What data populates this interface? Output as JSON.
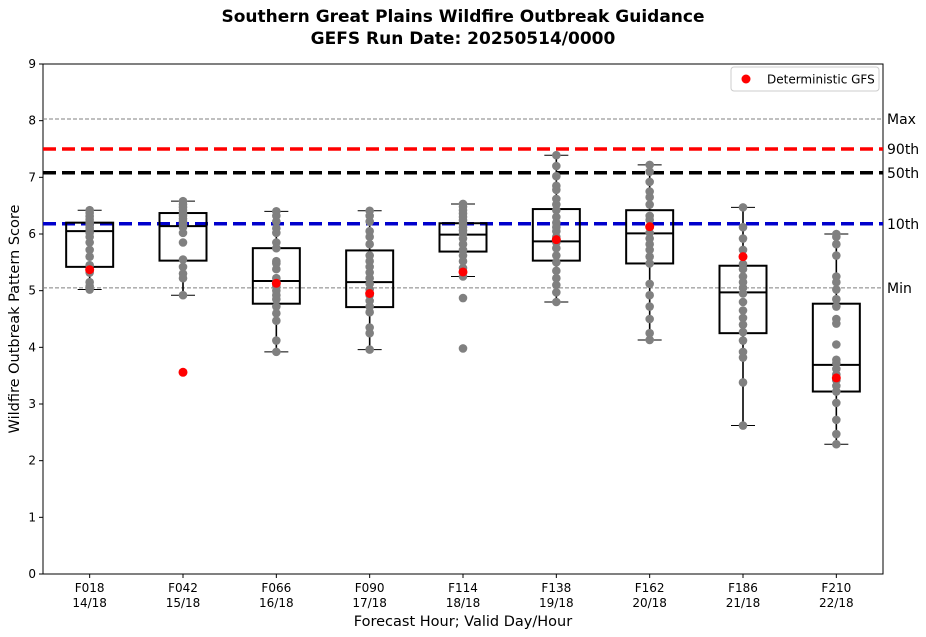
{
  "chart_data": {
    "type": "box",
    "title": "Southern Great Plains Wildfire Outbreak Guidance",
    "subtitle": "GEFS Run Date: 20250514/0000",
    "xlabel": "Forecast Hour; Valid Day/Hour",
    "ylabel": "Wildfire Outbreak Pattern Score",
    "ylim": [
      0,
      9
    ],
    "yticks": [
      0,
      1,
      2,
      3,
      4,
      5,
      6,
      7,
      8,
      9
    ],
    "grid": false,
    "legend": {
      "placement": "top-right",
      "entries": [
        "Deterministic GFS"
      ]
    },
    "colors": {
      "ensemble_points": "#808080",
      "deterministic": "#ff0000",
      "p90": "#ff0000",
      "p50": "#000000",
      "p10": "#0000cc",
      "minmax": "#808080"
    },
    "reference_lines": [
      {
        "label": "Max",
        "value": 8.03,
        "style": "thin-dashed"
      },
      {
        "label": "90th",
        "value": 7.5,
        "style": "thick-dashed"
      },
      {
        "label": "50th",
        "value": 7.08,
        "style": "thick-dashed"
      },
      {
        "label": "10th",
        "value": 6.18,
        "style": "thick-dashed"
      },
      {
        "label": "Min",
        "value": 5.05,
        "style": "thin-dashed"
      }
    ],
    "categories": [
      {
        "hour": "F018",
        "valid": "14/18",
        "box": {
          "whislo": 5.02,
          "q1": 5.42,
          "med": 6.05,
          "q3": 6.2,
          "whishi": 6.42
        },
        "deterministic": 5.37,
        "members": [
          5.02,
          5.08,
          5.15,
          5.32,
          5.45,
          5.6,
          5.72,
          5.85,
          5.95,
          6.02,
          6.08,
          6.12,
          6.17,
          6.21,
          6.26,
          6.31,
          6.37,
          6.42
        ]
      },
      {
        "hour": "F042",
        "valid": "15/18",
        "box": {
          "whislo": 4.92,
          "q1": 5.53,
          "med": 6.14,
          "q3": 6.37,
          "whishi": 6.58
        },
        "deterministic": 3.56,
        "members": [
          4.92,
          5.22,
          5.3,
          5.42,
          5.55,
          5.85,
          6.02,
          6.12,
          6.17,
          6.22,
          6.27,
          6.32,
          6.36,
          6.42,
          6.47,
          6.52,
          6.58
        ]
      },
      {
        "hour": "F066",
        "valid": "16/18",
        "box": {
          "whislo": 3.92,
          "q1": 4.77,
          "med": 5.17,
          "q3": 5.75,
          "whishi": 6.4
        },
        "deterministic": 5.13,
        "members": [
          3.92,
          4.12,
          4.47,
          4.6,
          4.72,
          4.85,
          4.92,
          5.0,
          5.08,
          5.15,
          5.22,
          5.38,
          5.48,
          5.52,
          5.75,
          5.85,
          6.02,
          6.1,
          6.22,
          6.32,
          6.4
        ]
      },
      {
        "hour": "F090",
        "valid": "17/18",
        "box": {
          "whislo": 3.96,
          "q1": 4.71,
          "med": 5.15,
          "q3": 5.71,
          "whishi": 6.41
        },
        "deterministic": 4.95,
        "members": [
          3.96,
          4.25,
          4.35,
          4.62,
          4.72,
          4.82,
          4.92,
          5.02,
          5.12,
          5.22,
          5.32,
          5.42,
          5.52,
          5.62,
          5.82,
          5.95,
          6.05,
          6.22,
          6.32,
          6.41
        ]
      },
      {
        "hour": "F114",
        "valid": "18/18",
        "box": {
          "whislo": 5.25,
          "q1": 5.69,
          "med": 5.99,
          "q3": 6.19,
          "whishi": 6.53
        },
        "deterministic": 5.33,
        "members": [
          3.98,
          4.87,
          5.25,
          5.4,
          5.52,
          5.62,
          5.72,
          5.82,
          5.92,
          6.0,
          6.06,
          6.12,
          6.18,
          6.24,
          6.3,
          6.36,
          6.42,
          6.48,
          6.53
        ]
      },
      {
        "hour": "F138",
        "valid": "19/18",
        "box": {
          "whislo": 4.8,
          "q1": 5.53,
          "med": 5.87,
          "q3": 6.44,
          "whishi": 7.39
        },
        "deterministic": 5.9,
        "members": [
          4.8,
          4.97,
          5.1,
          5.22,
          5.35,
          5.5,
          5.62,
          5.75,
          5.85,
          5.95,
          6.05,
          6.12,
          6.2,
          6.3,
          6.42,
          6.52,
          6.62,
          6.78,
          6.85,
          7.02,
          7.2,
          7.39
        ]
      },
      {
        "hour": "F162",
        "valid": "20/18",
        "box": {
          "whislo": 4.13,
          "q1": 5.48,
          "med": 6.01,
          "q3": 6.42,
          "whishi": 7.22
        },
        "deterministic": 6.13,
        "members": [
          4.13,
          4.25,
          4.5,
          4.72,
          4.92,
          5.12,
          5.48,
          5.6,
          5.72,
          5.82,
          5.92,
          6.02,
          6.12,
          6.25,
          6.32,
          6.52,
          6.65,
          6.75,
          6.92,
          7.1,
          7.22
        ]
      },
      {
        "hour": "F186",
        "valid": "21/18",
        "box": {
          "whislo": 2.62,
          "q1": 4.25,
          "med": 4.97,
          "q3": 5.44,
          "whishi": 6.47
        },
        "deterministic": 5.6,
        "members": [
          2.62,
          3.38,
          3.82,
          3.92,
          4.12,
          4.27,
          4.4,
          4.52,
          4.65,
          4.8,
          4.95,
          5.05,
          5.15,
          5.25,
          5.38,
          5.47,
          5.72,
          5.92,
          6.12,
          6.47
        ]
      },
      {
        "hour": "F210",
        "valid": "22/18",
        "box": {
          "whislo": 2.29,
          "q1": 3.22,
          "med": 3.69,
          "q3": 4.77,
          "whishi": 6.0
        },
        "deterministic": 3.46,
        "members": [
          2.29,
          2.47,
          2.72,
          3.02,
          3.22,
          3.32,
          3.42,
          3.52,
          3.62,
          3.72,
          3.78,
          4.05,
          4.42,
          4.5,
          4.72,
          4.85,
          5.02,
          5.15,
          5.25,
          5.62,
          5.82,
          5.95,
          6.0
        ]
      }
    ]
  }
}
